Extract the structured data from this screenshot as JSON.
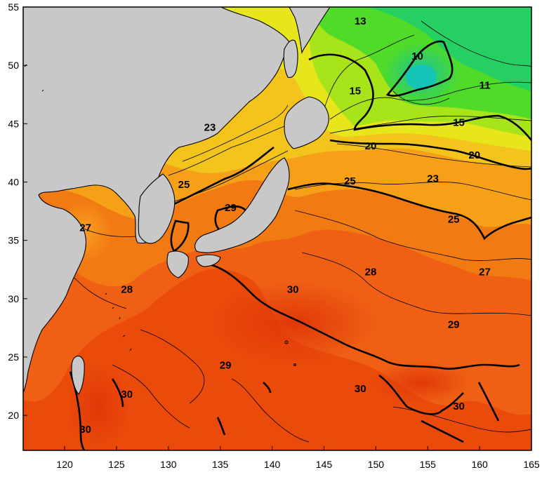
{
  "map": {
    "lon_range": [
      116,
      165
    ],
    "lat_range": [
      17,
      55
    ],
    "x_ticks": [
      "120",
      "125",
      "130",
      "135",
      "140",
      "145",
      "150",
      "155",
      "160",
      "165"
    ],
    "y_ticks": [
      "55",
      "50",
      "45",
      "40",
      "35",
      "30",
      "25",
      "20"
    ],
    "land_color": "#c8c8c8",
    "contour_labels": [
      {
        "text": "13",
        "lon": 148.5,
        "lat": 53.5
      },
      {
        "text": "10",
        "lon": 154.0,
        "lat": 50.5
      },
      {
        "text": "11",
        "lon": 160.5,
        "lat": 48.0
      },
      {
        "text": "15",
        "lon": 148.0,
        "lat": 47.5
      },
      {
        "text": "15",
        "lon": 158.0,
        "lat": 44.8
      },
      {
        "text": "20",
        "lon": 149.5,
        "lat": 42.8
      },
      {
        "text": "20",
        "lon": 159.5,
        "lat": 42.0
      },
      {
        "text": "23",
        "lon": 134.0,
        "lat": 44.4
      },
      {
        "text": "23",
        "lon": 155.5,
        "lat": 40.0
      },
      {
        "text": "25",
        "lon": 131.5,
        "lat": 39.5
      },
      {
        "text": "25",
        "lon": 147.5,
        "lat": 39.8
      },
      {
        "text": "25",
        "lon": 157.5,
        "lat": 36.5
      },
      {
        "text": "29",
        "lon": 136.0,
        "lat": 37.5
      },
      {
        "text": "27",
        "lon": 122.0,
        "lat": 35.8
      },
      {
        "text": "28",
        "lon": 126.0,
        "lat": 30.5
      },
      {
        "text": "28",
        "lon": 149.5,
        "lat": 32.0
      },
      {
        "text": "27",
        "lon": 160.5,
        "lat": 32.0
      },
      {
        "text": "30",
        "lon": 142.0,
        "lat": 30.5
      },
      {
        "text": "29",
        "lon": 157.5,
        "lat": 27.5
      },
      {
        "text": "29",
        "lon": 135.5,
        "lat": 24.0
      },
      {
        "text": "30",
        "lon": 148.5,
        "lat": 22.0
      },
      {
        "text": "30",
        "lon": 126.0,
        "lat": 21.5
      },
      {
        "text": "30",
        "lon": 122.0,
        "lat": 18.5
      },
      {
        "text": "30",
        "lon": 158.0,
        "lat": 20.5
      }
    ]
  }
}
